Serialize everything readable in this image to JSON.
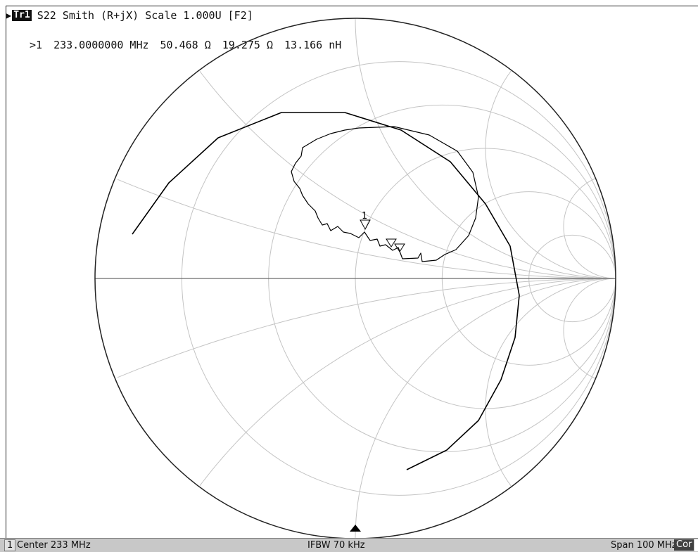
{
  "trace": {
    "arrow": "▶",
    "badge": "Tr1",
    "title": "S22 Smith (R+jX) Scale 1.000U [F2]"
  },
  "marker": {
    "id": ">1",
    "frequency": "233.0000000 MHz",
    "resistance": "50.468 Ω",
    "reactance": "19.275 Ω",
    "inductance": "13.166 nH",
    "label": "1"
  },
  "status": {
    "channel": "1",
    "center": "Center 233 MHz",
    "ifbw": "IFBW 70 kHz",
    "span": "Span 100 MHz",
    "cor": "Cor"
  },
  "colors": {
    "grid": "#c4c4c4",
    "outer": "#222222",
    "trace": "#000000"
  },
  "icons": {
    "stimulus_marker": "triangle-up-icon",
    "marker": "triangle-down-icon"
  }
}
